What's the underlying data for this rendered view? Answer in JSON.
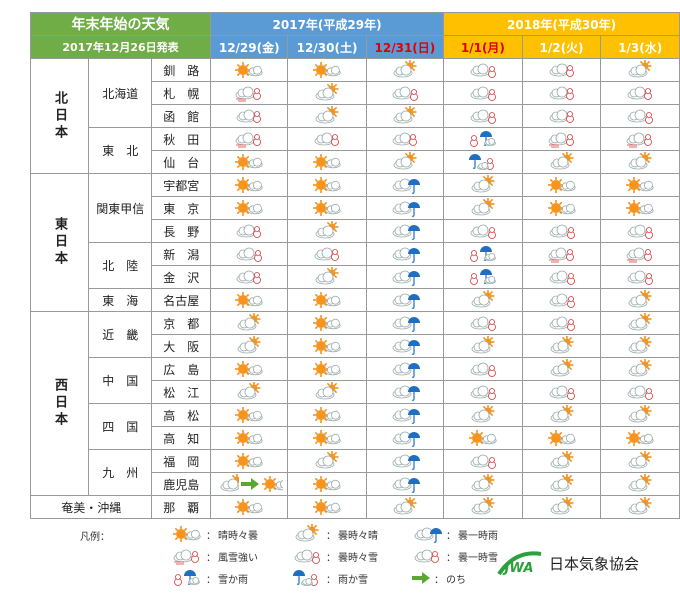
{
  "header": {
    "title": "年末年始の天気",
    "issued": "2017年12月26日発表",
    "years": [
      {
        "label": "2017年(平成29年)",
        "color": "#5b9bd5",
        "span": 3
      },
      {
        "label": "2018年(平成30年)",
        "color": "#ffc000",
        "span": 3
      }
    ],
    "dates": [
      {
        "label": "12/29(金)",
        "color": "#ffffff"
      },
      {
        "label": "12/30(土)",
        "color": "#ffffff"
      },
      {
        "label": "12/31(日)",
        "color": "#e00000"
      },
      {
        "label": "1/1(月)",
        "color": "#e00000"
      },
      {
        "label": "1/2(火)",
        "color": "#ffffff"
      },
      {
        "label": "1/3(水)",
        "color": "#ffffff"
      }
    ]
  },
  "regions": [
    {
      "name": "北日本",
      "areas": [
        {
          "name": "北海道",
          "cities": [
            {
              "name": "釧　路",
              "weather": [
                "晴時々曇",
                "晴時々曇",
                "曇時々晴",
                "曇時々雪",
                "曇一時雪",
                "曇時々晴"
              ]
            },
            {
              "name": "札　幌",
              "weather": [
                "風雪強い",
                "曇時々晴",
                "曇時々雪",
                "曇時々雪",
                "曇一時雪",
                "曇一時雪"
              ]
            },
            {
              "name": "函　館",
              "weather": [
                "曇一時雪",
                "曇時々晴",
                "曇時々晴",
                "曇時々雪",
                "曇一時雪",
                "曇時々雪"
              ]
            }
          ]
        },
        {
          "name": "東　北",
          "cities": [
            {
              "name": "秋　田",
              "weather": [
                "風雪強い",
                "曇一時雪",
                "曇一時雪",
                "雪か雨",
                "風雪強い",
                "風雪強い"
              ]
            },
            {
              "name": "仙　台",
              "weather": [
                "晴時々曇",
                "晴時々曇",
                "曇時々晴",
                "雨か雪",
                "曇時々晴",
                "曇時々晴"
              ]
            }
          ]
        }
      ]
    },
    {
      "name": "東日本",
      "areas": [
        {
          "name": "関東甲信",
          "cities": [
            {
              "name": "宇都宮",
              "weather": [
                "晴時々曇",
                "晴時々曇",
                "曇一時雨",
                "曇時々晴",
                "晴時々曇",
                "晴時々曇"
              ]
            },
            {
              "name": "東　京",
              "weather": [
                "晴時々曇",
                "晴時々曇",
                "曇一時雨",
                "曇時々晴",
                "晴時々曇",
                "晴時々曇"
              ]
            },
            {
              "name": "長　野",
              "weather": [
                "曇一時雪",
                "曇時々晴",
                "曇一時雨",
                "曇時々雪",
                "曇時々雪",
                "曇時々雪"
              ]
            }
          ]
        },
        {
          "name": "北　陸",
          "cities": [
            {
              "name": "新　潟",
              "weather": [
                "曇時々雪",
                "曇一時雪",
                "曇一時雨",
                "雪か雨",
                "風雪強い",
                "風雪強い"
              ]
            },
            {
              "name": "金　沢",
              "weather": [
                "曇一時雪",
                "曇時々晴",
                "曇一時雨",
                "雪か雨",
                "曇時々雪",
                "曇時々雪"
              ]
            }
          ]
        },
        {
          "name": "東　海",
          "cities": [
            {
              "name": "名古屋",
              "weather": [
                "晴時々曇",
                "晴時々曇",
                "曇一時雨",
                "曇時々晴",
                "曇時々雪",
                "曇時々晴"
              ]
            }
          ]
        }
      ]
    },
    {
      "name": "西日本",
      "areas": [
        {
          "name": "近　畿",
          "cities": [
            {
              "name": "京　都",
              "weather": [
                "曇時々晴",
                "晴時々曇",
                "曇一時雨",
                "曇時々雪",
                "曇時々雪",
                "曇時々晴"
              ]
            },
            {
              "name": "大　阪",
              "weather": [
                "曇時々晴",
                "晴時々曇",
                "曇一時雨",
                "曇時々晴",
                "曇時々晴",
                "曇時々晴"
              ]
            }
          ]
        },
        {
          "name": "中　国",
          "cities": [
            {
              "name": "広　島",
              "weather": [
                "晴時々曇",
                "晴時々曇",
                "曇一時雨",
                "曇時々雪",
                "曇時々晴",
                "曇時々晴"
              ]
            },
            {
              "name": "松　江",
              "weather": [
                "曇時々晴",
                "曇時々晴",
                "曇一時雨",
                "曇時々雪",
                "曇時々雪",
                "曇時々雪"
              ]
            }
          ]
        },
        {
          "name": "四　国",
          "cities": [
            {
              "name": "高　松",
              "weather": [
                "晴時々曇",
                "晴時々曇",
                "曇一時雨",
                "曇時々晴",
                "曇時々晴",
                "曇時々晴"
              ]
            },
            {
              "name": "高　知",
              "weather": [
                "晴時々曇",
                "晴時々曇",
                "曇一時雨",
                "晴時々曇",
                "晴時々曇",
                "晴時々曇"
              ]
            }
          ]
        },
        {
          "name": "九　州",
          "cities": [
            {
              "name": "福　岡",
              "weather": [
                "晴時々曇",
                "曇時々晴",
                "曇一時雨",
                "曇時々雪",
                "曇時々晴",
                "曇時々晴"
              ]
            },
            {
              "name": "鹿児島",
              "weather": [
                [
                  "曇時々晴",
                  "のち",
                  "晴時々曇"
                ],
                "晴時々曇",
                "曇一時雨",
                "曇時々晴",
                "曇時々晴",
                "曇時々晴"
              ]
            }
          ]
        }
      ]
    },
    {
      "name": "奄美・沖縄",
      "areas": [
        {
          "name": null,
          "cities": [
            {
              "name": "那　覇",
              "weather": [
                "晴時々曇",
                "晴時々曇",
                "曇時々晴",
                "曇時々晴",
                "曇時々晴",
                "曇時々晴"
              ]
            }
          ]
        }
      ]
    }
  ],
  "legend": {
    "title": "凡例：",
    "items": [
      "晴時々曇",
      "曇時々晴",
      "曇一時雨",
      "風雪強い",
      "曇時々雪",
      "曇一時雪",
      "雪か雨",
      "雨か雪",
      "のち"
    ]
  },
  "footer": {
    "logo_mark": "JWA",
    "org": "日本気象協会"
  }
}
